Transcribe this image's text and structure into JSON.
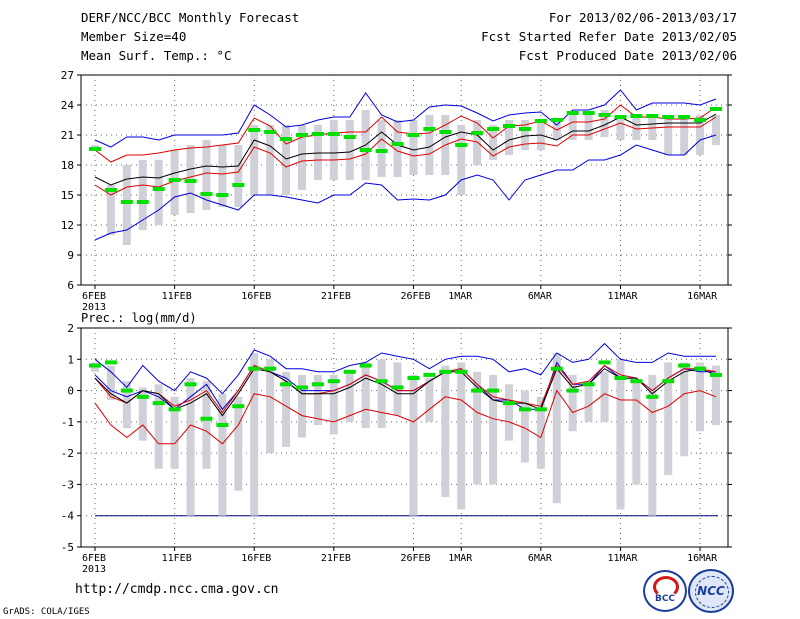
{
  "header": {
    "title": "DERF/NCC/BCC Monthly Forecast",
    "member_size": "Member Size=40",
    "variable": "Mean Surf. Temp.: °C",
    "period": "For 2013/02/06-2013/03/17",
    "started": "Fcst Started Refer Date 2013/02/05",
    "produced": "Fcst Produced Date 2013/02/06"
  },
  "footer": {
    "url": "http://cmdp.ncc.cma.gov.cn",
    "grads": "GrADS: COLA/IGES",
    "logo_bcc": "BCC",
    "logo_ncc": "NCC"
  },
  "colors": {
    "ensemble_bar": "#d0d0d8",
    "mean": "#000000",
    "spread": "#e00000",
    "extremes": "#0000e0",
    "observed": "#00e000",
    "threshold": "#000080"
  },
  "chart_data": [
    {
      "type": "box",
      "title": "Mean Surf. Temp.: °C",
      "ylim": [
        6,
        27
      ],
      "yticks": [
        6,
        9,
        12,
        15,
        18,
        21,
        24,
        27
      ],
      "x_ticks": [
        {
          "day": 1,
          "label": "6FEB",
          "sub": "2013"
        },
        {
          "day": 6,
          "label": "11FEB"
        },
        {
          "day": 11,
          "label": "16FEB"
        },
        {
          "day": 16,
          "label": "21FEB"
        },
        {
          "day": 21,
          "label": "26FEB"
        },
        {
          "day": 24,
          "label": "1MAR"
        },
        {
          "day": 29,
          "label": "6MAR"
        },
        {
          "day": 34,
          "label": "11MAR"
        },
        {
          "day": 39,
          "label": "16MAR"
        }
      ],
      "days": 40,
      "bar_low": [
        19.5,
        11,
        10,
        11.5,
        12,
        13,
        13.2,
        13.5,
        13.8,
        13.8,
        15,
        15,
        15,
        15.5,
        16.5,
        16.5,
        16.5,
        16.5,
        16.8,
        16.8,
        17,
        17,
        17,
        15,
        18,
        18.5,
        19,
        19.5,
        19.5,
        20.5,
        20.5,
        20.5,
        20.8,
        20.5,
        20.5,
        20.5,
        19,
        19,
        19,
        20
      ],
      "bar_high": [
        20,
        16,
        18,
        18.5,
        18.5,
        19.5,
        20,
        20.5,
        20,
        20,
        22,
        22,
        22,
        22,
        22,
        22.5,
        22.5,
        23.5,
        22.5,
        22.5,
        22.5,
        23,
        23,
        22,
        22.5,
        22,
        22.5,
        22.5,
        22.5,
        22.5,
        23,
        23,
        23.5,
        23,
        23,
        23,
        23,
        23,
        23,
        23
      ],
      "observed": [
        19.6,
        15.5,
        14.3,
        14.3,
        15.6,
        16.5,
        16.4,
        15.1,
        15,
        16,
        21.5,
        21.3,
        20.6,
        21,
        21.1,
        21.1,
        20.8,
        19.5,
        19.4,
        20.1,
        21,
        21.6,
        21.3,
        20,
        21.2,
        21.6,
        21.9,
        21.6,
        22.4,
        22.5,
        23.2,
        23.2,
        23,
        22.8,
        22.9,
        22.9,
        22.8,
        22.8,
        22.5,
        23.6
      ],
      "mean": [
        16.8,
        16,
        16.6,
        16.8,
        16.7,
        17.2,
        17.6,
        17.9,
        17.8,
        17.9,
        20.5,
        19.9,
        18.6,
        19.1,
        19.2,
        19.2,
        19.3,
        20,
        21.3,
        20,
        19.5,
        19.8,
        20.8,
        21.3,
        21,
        19.5,
        20.5,
        20.9,
        21,
        20.5,
        21.4,
        21.4,
        22,
        22.8,
        22,
        22.1,
        22.2,
        22.2,
        22.2,
        23.1
      ],
      "upper": [
        19.5,
        18.3,
        19,
        19,
        19.2,
        19.5,
        19.7,
        19.8,
        20,
        20.2,
        22.7,
        21.9,
        20.1,
        20.8,
        21,
        21.2,
        21.3,
        21.3,
        22.8,
        21.3,
        21.1,
        21.2,
        22,
        22.9,
        22.2,
        20.7,
        21.9,
        22,
        22.4,
        21.5,
        22.3,
        22.3,
        22.6,
        24,
        22.8,
        22.8,
        22.6,
        22.6,
        22.7,
        23.8
      ],
      "lower": [
        16,
        15,
        15.8,
        16,
        15.8,
        16.4,
        16.8,
        17.2,
        17.1,
        17.3,
        19.8,
        19.2,
        17.8,
        18.4,
        18.5,
        18.5,
        18.6,
        19.1,
        20.6,
        19.4,
        18.9,
        19.1,
        20,
        20.6,
        20.3,
        18.9,
        19.8,
        20.1,
        20.2,
        19.9,
        21,
        21,
        21.6,
        22.2,
        21.6,
        21.7,
        21.8,
        21.8,
        21.8,
        22.8
      ],
      "max": [
        20.5,
        19.8,
        20.8,
        20.8,
        20.5,
        21,
        21,
        21,
        21,
        21.2,
        24,
        23,
        21.8,
        22,
        22.5,
        22.8,
        22.8,
        25.2,
        23,
        22.3,
        22.5,
        23.8,
        24,
        23.9,
        23.2,
        22.4,
        23,
        23.2,
        23.3,
        22,
        23.5,
        23.5,
        24,
        25.5,
        23.5,
        24.2,
        24.2,
        24.2,
        24,
        24.6
      ],
      "min": [
        10.5,
        11.2,
        11.5,
        12.5,
        13.5,
        14.8,
        15.2,
        14.5,
        14,
        13.5,
        15,
        15,
        14.8,
        14.5,
        14.2,
        15,
        15,
        16.2,
        16,
        14.5,
        14.6,
        14.5,
        15,
        16.5,
        17,
        16.5,
        14.5,
        16.5,
        17,
        17.5,
        17.5,
        18.5,
        18.5,
        19,
        20,
        19.5,
        19,
        19,
        20.5,
        21
      ]
    },
    {
      "type": "box",
      "title": "Prec.: log(mm/d)",
      "ylim": [
        -5,
        2
      ],
      "yticks": [
        -5,
        -4,
        -3,
        -2,
        -1,
        0,
        1,
        2
      ],
      "threshold": -4,
      "days": 40,
      "bar_low": [
        0.6,
        -0.3,
        -1.2,
        -1.6,
        -2.5,
        -2.5,
        -4,
        -2.5,
        -4,
        -3.2,
        -4,
        -2,
        -1.8,
        -1.5,
        -1.1,
        -1.4,
        -1,
        -1.2,
        -1.2,
        -0.8,
        -4,
        -1,
        -3.4,
        -3.8,
        -3,
        -3,
        -1.6,
        -2.3,
        -2.5,
        -3.6,
        -1.3,
        -1,
        -1,
        -3.8,
        -3,
        -4,
        -2.7,
        -2.1,
        -1.3,
        -1.1
      ],
      "bar_high": [
        0.9,
        0.8,
        0.3,
        0.1,
        0.2,
        -0.2,
        0.4,
        0.3,
        -0.1,
        -0.2,
        1.2,
        1,
        0.6,
        0.5,
        0.5,
        0.5,
        0.6,
        0.9,
        1,
        0.9,
        0.5,
        0.4,
        0.8,
        0.9,
        0.6,
        0.5,
        0.2,
        0,
        -0.2,
        1.2,
        0.5,
        0.3,
        0.6,
        1,
        0.3,
        0.5,
        0.9,
        0.9,
        0.9,
        0.8
      ],
      "observed": [
        0.8,
        0.9,
        0,
        -0.2,
        -0.4,
        -0.6,
        0.2,
        -0.9,
        -1.1,
        -0.5,
        0.7,
        0.7,
        0.2,
        0.1,
        0.2,
        0.3,
        0.6,
        0.8,
        0.3,
        0.1,
        0.4,
        0.5,
        0.6,
        0.6,
        0,
        0,
        -0.4,
        -0.6,
        -0.6,
        0.7,
        0,
        0.2,
        0.9,
        0.4,
        0.3,
        -0.2,
        0.3,
        0.8,
        0.7,
        0.5
      ],
      "mean": [
        0.4,
        -0.1,
        -0.4,
        0,
        -0.1,
        -0.6,
        -0.4,
        -0.1,
        -0.8,
        -0.1,
        0.7,
        0.6,
        0.3,
        -0.1,
        -0.1,
        -0.1,
        0.1,
        0.4,
        0.2,
        -0.1,
        -0.1,
        0.3,
        0.6,
        0.6,
        0.1,
        -0.3,
        -0.4,
        -0.4,
        -0.6,
        0.7,
        0.1,
        0.2,
        0.7,
        0.4,
        0.4,
        -0.1,
        0.3,
        0.6,
        0.7,
        0.5
      ],
      "upper": [
        0.4,
        -0.2,
        -0.4,
        0,
        -0.1,
        -0.5,
        -0.3,
        0,
        -0.7,
        0,
        0.8,
        0.6,
        0.3,
        -0.1,
        -0.1,
        0,
        0.2,
        0.5,
        0.3,
        0,
        0,
        0.3,
        0.6,
        0.7,
        0.2,
        -0.2,
        -0.3,
        -0.4,
        -0.5,
        0.8,
        0.2,
        0.3,
        0.8,
        0.5,
        0.4,
        0,
        0.4,
        0.7,
        0.7,
        0.6
      ],
      "lower": [
        -0.4,
        -1.1,
        -1.5,
        -1.1,
        -1.7,
        -1.7,
        -1.1,
        -1.3,
        -1.7,
        -1.1,
        -0.1,
        -0.2,
        -0.5,
        -0.8,
        -0.9,
        -1,
        -0.8,
        -0.6,
        -0.7,
        -0.8,
        -1,
        -0.6,
        -0.2,
        -0.3,
        -0.7,
        -0.9,
        -1,
        -1.2,
        -1.5,
        0,
        -0.7,
        -0.5,
        -0.1,
        -0.3,
        -0.3,
        -0.7,
        -0.5,
        -0.1,
        0,
        -0.2
      ],
      "max": [
        1,
        0.6,
        0.1,
        0.8,
        0.3,
        0,
        0.6,
        0.4,
        -0.1,
        0.5,
        1.3,
        1.1,
        0.7,
        0.7,
        0.6,
        0.6,
        0.8,
        0.9,
        1.2,
        1.1,
        1,
        0.7,
        1,
        1.1,
        1.1,
        1,
        0.6,
        0.7,
        0.5,
        1.2,
        0.9,
        1,
        1.5,
        1,
        0.9,
        0.9,
        1.2,
        1.1,
        1.1,
        1.1
      ],
      "min": [
        0.5,
        0,
        -0.2,
        0,
        -0.2,
        -0.6,
        -0.2,
        0.2,
        -0.6,
        0,
        0.8,
        0.6,
        0.4,
        0,
        0,
        0,
        0.2,
        0.5,
        0.3,
        0,
        0,
        0.3,
        0.6,
        0.7,
        0.2,
        -0.3,
        -0.3,
        -0.6,
        -0.6,
        0.9,
        0.2,
        0.2,
        0.8,
        0.4,
        0.4,
        0,
        0.4,
        0.7,
        0.6,
        0.6
      ]
    }
  ]
}
